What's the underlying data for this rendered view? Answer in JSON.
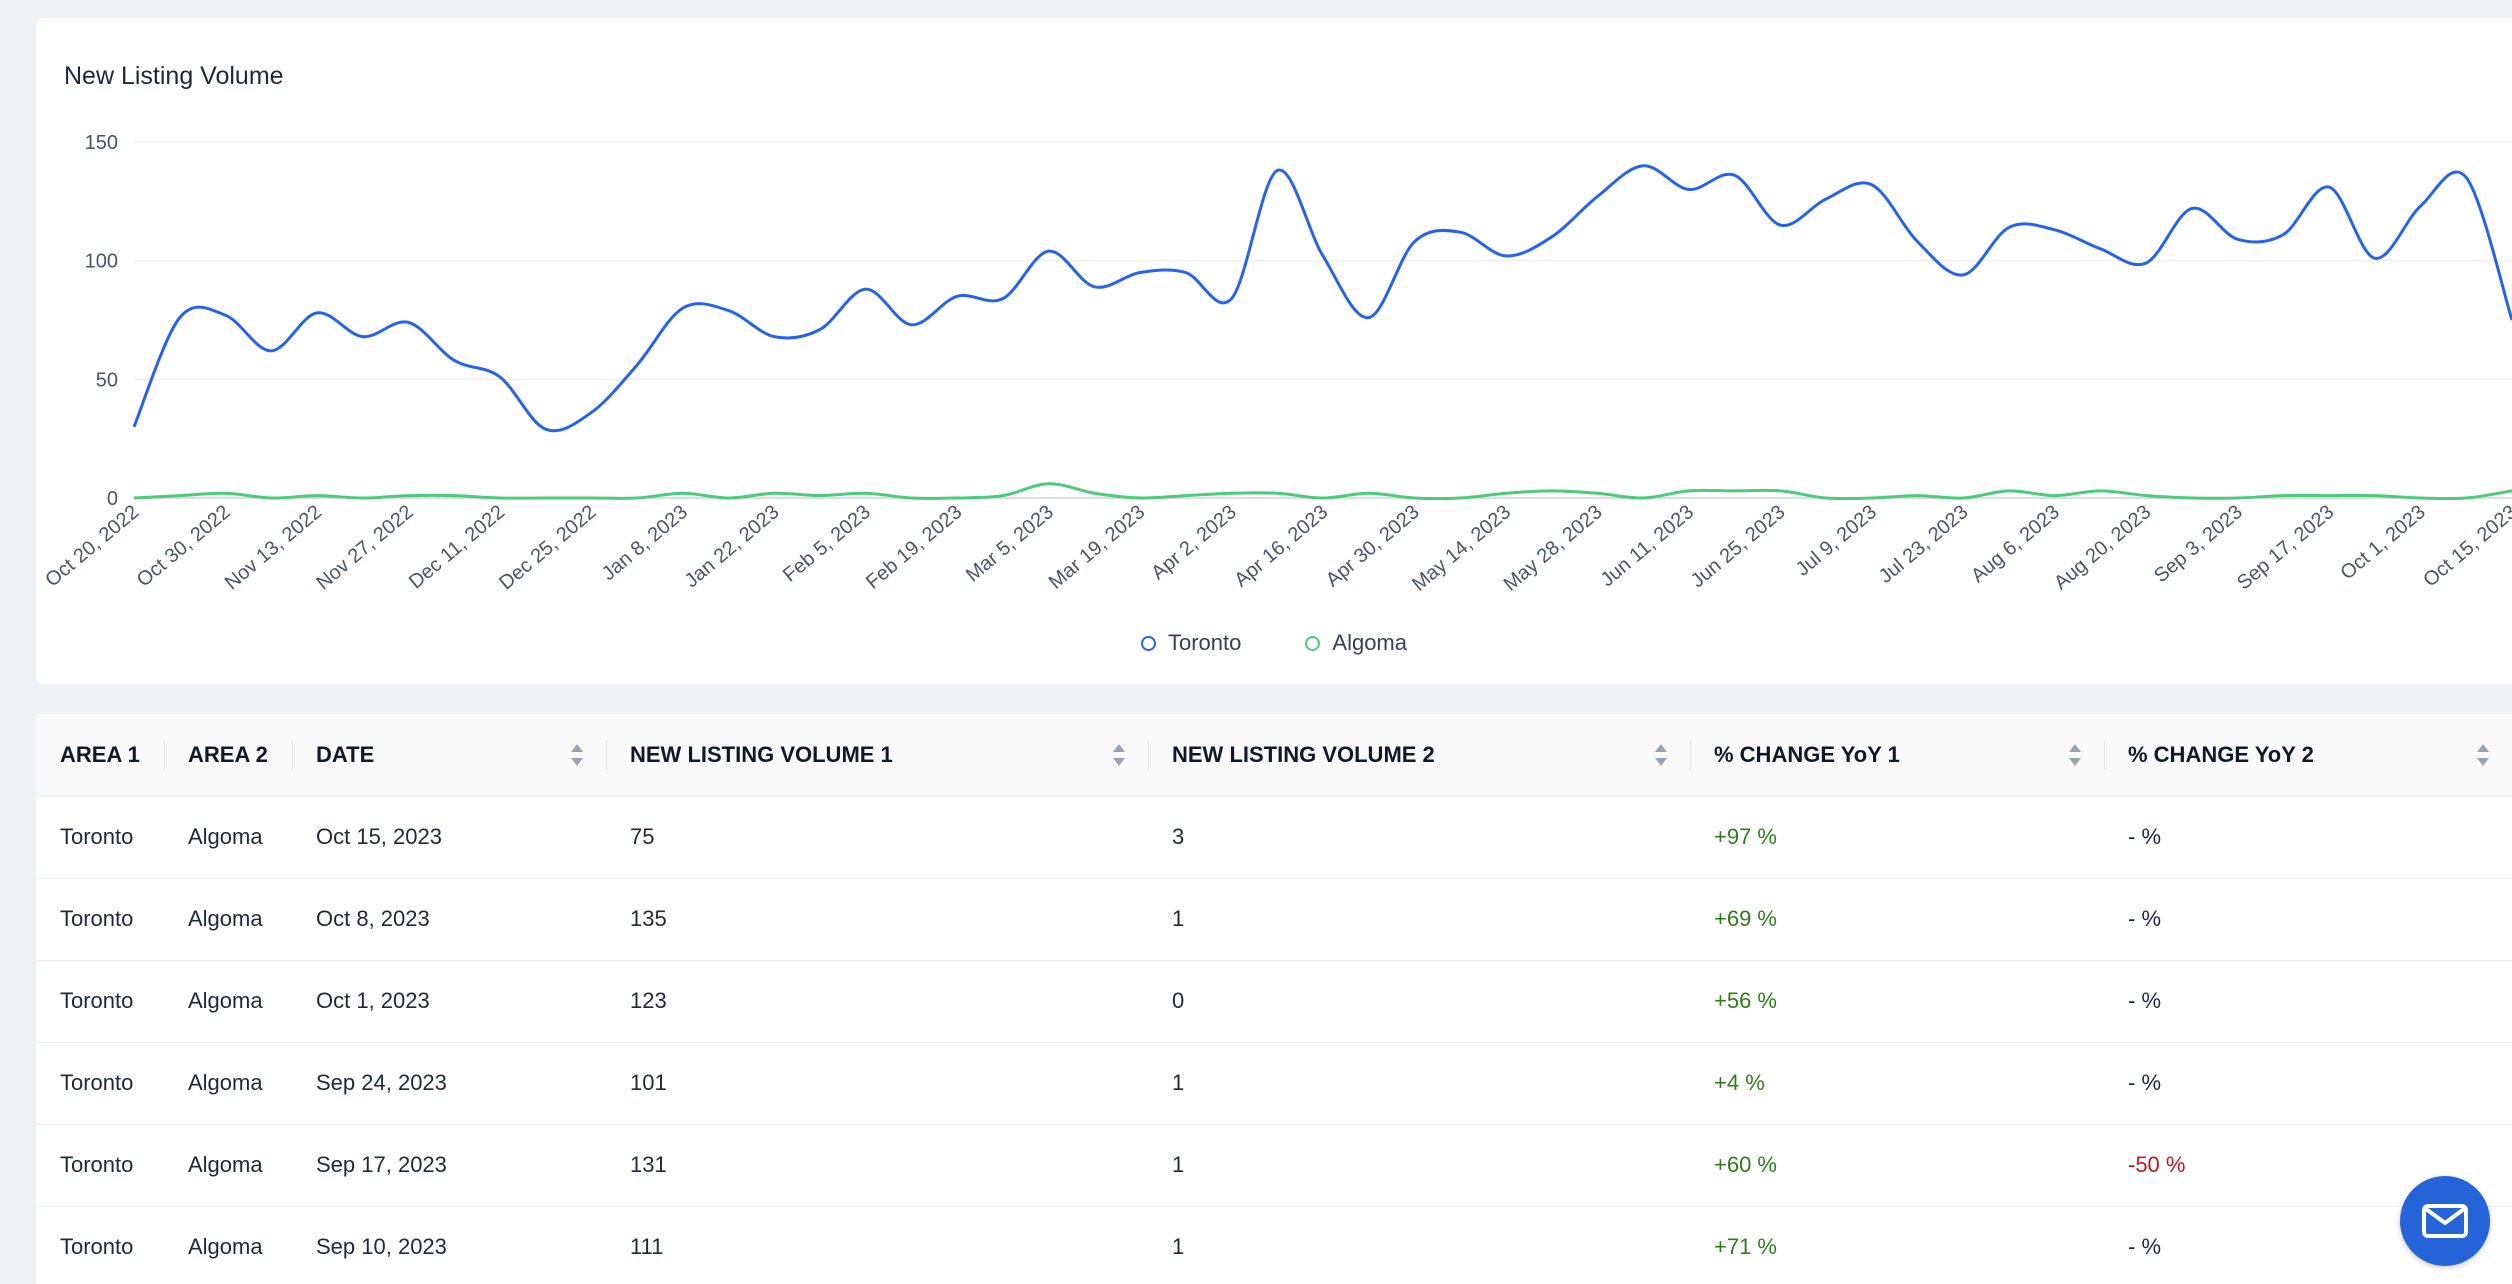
{
  "chart_card": {
    "title": "New Listing Volume"
  },
  "chart_data": {
    "type": "line",
    "title": "New Listing Volume",
    "ylim": [
      0,
      150
    ],
    "yticks": [
      0,
      50,
      100,
      150
    ],
    "grid": true,
    "legend_position": "bottom-center",
    "x_tick_labels": [
      "Oct 20, 2022",
      "Oct 30, 2022",
      "Nov 13, 2022",
      "Nov 27, 2022",
      "Dec 11, 2022",
      "Dec 25, 2022",
      "Jan 8, 2023",
      "Jan 22, 2023",
      "Feb 5, 2023",
      "Feb 19, 2023",
      "Mar 5, 2023",
      "Mar 19, 2023",
      "Apr 2, 2023",
      "Apr 16, 2023",
      "Apr 30, 2023",
      "May 14, 2023",
      "May 28, 2023",
      "Jun 11, 2023",
      "Jun 25, 2023",
      "Jul 9, 2023",
      "Jul 23, 2023",
      "Aug 6, 2023",
      "Aug 20, 2023",
      "Sep 3, 2023",
      "Sep 17, 2023",
      "Oct 1, 2023",
      "Oct 15, 2023"
    ],
    "series": [
      {
        "name": "Toronto",
        "color": "#2563eb",
        "values": [
          30,
          76,
          77,
          62,
          78,
          68,
          74,
          58,
          51,
          29,
          36,
          56,
          80,
          79,
          68,
          71,
          88,
          73,
          85,
          84,
          104,
          89,
          95,
          95,
          84,
          138,
          102,
          76,
          108,
          112,
          102,
          110,
          127,
          140,
          130,
          136,
          115,
          126,
          132,
          108,
          94,
          114,
          113,
          105,
          99,
          122,
          109,
          111,
          131,
          101,
          123,
          135,
          75
        ]
      },
      {
        "name": "Algoma",
        "color": "#4ccb7a",
        "values": [
          0,
          1,
          2,
          0,
          1,
          0,
          1,
          1,
          0,
          0,
          0,
          0,
          2,
          0,
          2,
          1,
          2,
          0,
          0,
          1,
          6,
          2,
          0,
          1,
          2,
          2,
          0,
          2,
          0,
          0,
          2,
          3,
          2,
          0,
          3,
          3,
          3,
          0,
          0,
          1,
          0,
          3,
          1,
          3,
          1,
          0,
          0,
          1,
          1,
          1,
          0,
          0,
          3
        ]
      }
    ]
  },
  "table": {
    "headers": [
      "AREA 1",
      "AREA 2",
      "DATE",
      "NEW LISTING VOLUME 1",
      "NEW LISTING VOLUME 2",
      "% CHANGE YoY 1",
      "% CHANGE YoY 2"
    ],
    "rows": [
      [
        "Toronto",
        "Algoma",
        "Oct 15, 2023",
        "75",
        "3",
        "+97 %",
        "- %"
      ],
      [
        "Toronto",
        "Algoma",
        "Oct 8, 2023",
        "135",
        "1",
        "+69 %",
        "- %"
      ],
      [
        "Toronto",
        "Algoma",
        "Oct 1, 2023",
        "123",
        "0",
        "+56 %",
        "- %"
      ],
      [
        "Toronto",
        "Algoma",
        "Sep 24, 2023",
        "101",
        "1",
        "+4 %",
        "- %"
      ],
      [
        "Toronto",
        "Algoma",
        "Sep 17, 2023",
        "131",
        "1",
        "+60 %",
        "-50 %"
      ],
      [
        "Toronto",
        "Algoma",
        "Sep 10, 2023",
        "111",
        "1",
        "+71 %",
        "- %"
      ]
    ]
  },
  "colors": {
    "positive": "#2f7d18",
    "negative": "#c0141b",
    "accent": "#2563d9"
  },
  "chat_button": {
    "icon": "mail-icon"
  }
}
